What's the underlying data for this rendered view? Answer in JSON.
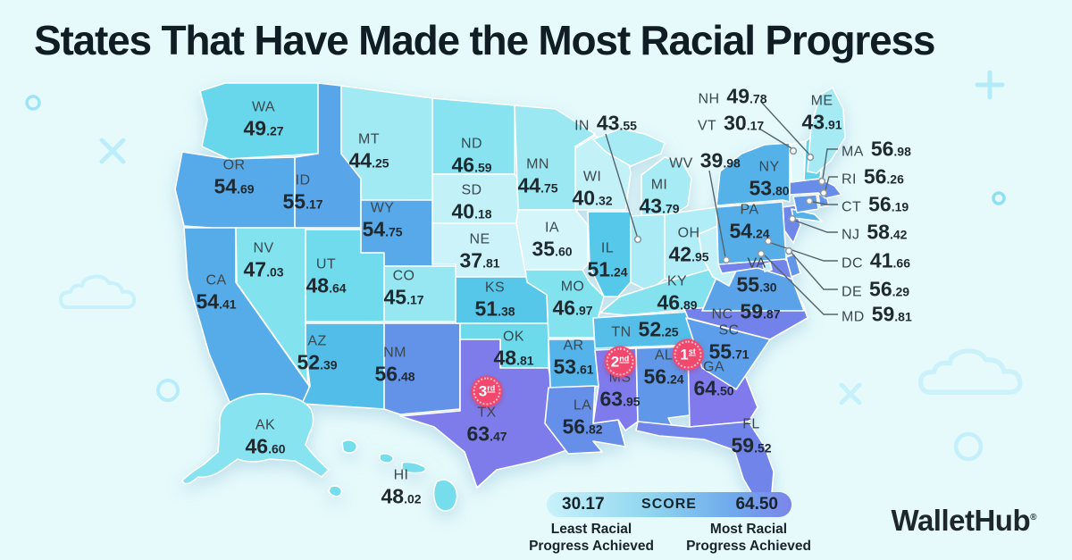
{
  "title": "States That Have Made the Most Racial Progress",
  "map": {
    "states": [
      {
        "id": "wa",
        "abbr": "WA",
        "value": "49.27"
      },
      {
        "id": "or",
        "abbr": "OR",
        "value": "54.69"
      },
      {
        "id": "ca",
        "abbr": "CA",
        "value": "54.41"
      },
      {
        "id": "nv",
        "abbr": "NV",
        "value": "47.03"
      },
      {
        "id": "id",
        "abbr": "ID",
        "value": "55.17"
      },
      {
        "id": "ut",
        "abbr": "UT",
        "value": "48.64"
      },
      {
        "id": "az",
        "abbr": "AZ",
        "value": "52.39"
      },
      {
        "id": "mt",
        "abbr": "MT",
        "value": "44.25"
      },
      {
        "id": "wy",
        "abbr": "WY",
        "value": "54.75"
      },
      {
        "id": "co",
        "abbr": "CO",
        "value": "45.17"
      },
      {
        "id": "nm",
        "abbr": "NM",
        "value": "56.48"
      },
      {
        "id": "nd",
        "abbr": "ND",
        "value": "46.59"
      },
      {
        "id": "sd",
        "abbr": "SD",
        "value": "40.18"
      },
      {
        "id": "ne",
        "abbr": "NE",
        "value": "37.81"
      },
      {
        "id": "ks",
        "abbr": "KS",
        "value": "51.38"
      },
      {
        "id": "ok",
        "abbr": "OK",
        "value": "48.81"
      },
      {
        "id": "tx",
        "abbr": "TX",
        "value": "63.47",
        "rank": "3rd"
      },
      {
        "id": "mn",
        "abbr": "MN",
        "value": "44.75"
      },
      {
        "id": "ia",
        "abbr": "IA",
        "value": "35.60"
      },
      {
        "id": "mo",
        "abbr": "MO",
        "value": "46.97"
      },
      {
        "id": "ar",
        "abbr": "AR",
        "value": "53.61"
      },
      {
        "id": "la",
        "abbr": "LA",
        "value": "56.82"
      },
      {
        "id": "wi",
        "abbr": "WI",
        "value": "40.32"
      },
      {
        "id": "il",
        "abbr": "IL",
        "value": "51.24"
      },
      {
        "id": "mi",
        "abbr": "MI",
        "value": "43.79"
      },
      {
        "id": "in",
        "abbr": "IN",
        "value": "43.55"
      },
      {
        "id": "oh",
        "abbr": "OH",
        "value": "42.95"
      },
      {
        "id": "ky",
        "abbr": "KY",
        "value": "46.89"
      },
      {
        "id": "tn",
        "abbr": "TN",
        "value": "52.25"
      },
      {
        "id": "ms",
        "abbr": "MS",
        "value": "63.95",
        "rank": "2nd"
      },
      {
        "id": "al",
        "abbr": "AL",
        "value": "56.24"
      },
      {
        "id": "ga",
        "abbr": "GA",
        "value": "64.50",
        "rank": "1st"
      },
      {
        "id": "fl",
        "abbr": "FL",
        "value": "59.52"
      },
      {
        "id": "sc",
        "abbr": "SC",
        "value": "55.71"
      },
      {
        "id": "nc",
        "abbr": "NC",
        "value": "59.87"
      },
      {
        "id": "va",
        "abbr": "VA",
        "value": "55.30"
      },
      {
        "id": "wv",
        "abbr": "WV",
        "value": "39.98"
      },
      {
        "id": "md",
        "abbr": "MD",
        "value": "59.81"
      },
      {
        "id": "de",
        "abbr": "DE",
        "value": "56.29"
      },
      {
        "id": "dc",
        "abbr": "DC",
        "value": "41.66"
      },
      {
        "id": "nj",
        "abbr": "NJ",
        "value": "58.42"
      },
      {
        "id": "pa",
        "abbr": "PA",
        "value": "54.24"
      },
      {
        "id": "ny",
        "abbr": "NY",
        "value": "53.80"
      },
      {
        "id": "ct",
        "abbr": "CT",
        "value": "56.19"
      },
      {
        "id": "ri",
        "abbr": "RI",
        "value": "56.26"
      },
      {
        "id": "ma",
        "abbr": "MA",
        "value": "56.98"
      },
      {
        "id": "vt",
        "abbr": "VT",
        "value": "30.17"
      },
      {
        "id": "nh",
        "abbr": "NH",
        "value": "49.78"
      },
      {
        "id": "me",
        "abbr": "ME",
        "value": "43.91"
      },
      {
        "id": "ak",
        "abbr": "AK",
        "value": "46.60"
      },
      {
        "id": "hi",
        "abbr": "HI",
        "value": "48.02"
      }
    ],
    "ranks": [
      {
        "badge": "1st",
        "state": "GA"
      },
      {
        "badge": "2nd",
        "state": "MS"
      },
      {
        "badge": "3rd",
        "state": "TX"
      }
    ]
  },
  "chart_data": {
    "type": "choropleth-map",
    "title": "States That Have Made the Most Racial Progress",
    "value_label": "SCORE",
    "range": [
      30.17,
      64.5
    ],
    "categories": [
      "WA",
      "OR",
      "CA",
      "NV",
      "ID",
      "UT",
      "AZ",
      "MT",
      "WY",
      "CO",
      "NM",
      "ND",
      "SD",
      "NE",
      "KS",
      "OK",
      "TX",
      "MN",
      "IA",
      "MO",
      "AR",
      "LA",
      "WI",
      "IL",
      "MI",
      "IN",
      "OH",
      "KY",
      "TN",
      "MS",
      "AL",
      "GA",
      "FL",
      "SC",
      "NC",
      "VA",
      "WV",
      "MD",
      "DE",
      "DC",
      "NJ",
      "PA",
      "NY",
      "CT",
      "RI",
      "MA",
      "VT",
      "NH",
      "ME",
      "AK",
      "HI"
    ],
    "values": [
      49.27,
      54.69,
      54.41,
      47.03,
      55.17,
      48.64,
      52.39,
      44.25,
      54.75,
      45.17,
      56.48,
      46.59,
      40.18,
      37.81,
      51.38,
      48.81,
      63.47,
      44.75,
      35.6,
      46.97,
      53.61,
      56.82,
      40.32,
      51.24,
      43.79,
      43.55,
      42.95,
      46.89,
      52.25,
      63.95,
      56.24,
      64.5,
      59.52,
      55.71,
      59.87,
      55.3,
      39.98,
      59.81,
      56.29,
      41.66,
      58.42,
      54.24,
      53.8,
      56.19,
      56.26,
      56.98,
      30.17,
      49.78,
      43.91,
      46.6,
      48.02
    ],
    "top_ranks": {
      "1st": "GA",
      "2nd": "MS",
      "3rd": "TX"
    }
  },
  "legend": {
    "min": "30.17",
    "score": "SCORE",
    "max": "64.50",
    "least": [
      "Least Racial",
      "Progress Achieved"
    ],
    "most": [
      "Most Racial",
      "Progress Achieved"
    ]
  },
  "branding": {
    "logo": "WalletHub",
    "registered": "®"
  },
  "colors": {
    "background": "#e6fafb",
    "badge": "#f2486e",
    "scale_low": "#def8fb",
    "scale_mid": "#55c8e9",
    "scale_high": "#817aec",
    "state_border": "#ffffff",
    "callout_line": "#55646c"
  },
  "decorations": [
    "circle-outline-icon",
    "x-mark-icon",
    "cloud-icon",
    "circle-outline-icon",
    "plus-icon",
    "circle-outline-icon",
    "x-mark-icon",
    "cloud-icon",
    "circle-outline-icon"
  ]
}
